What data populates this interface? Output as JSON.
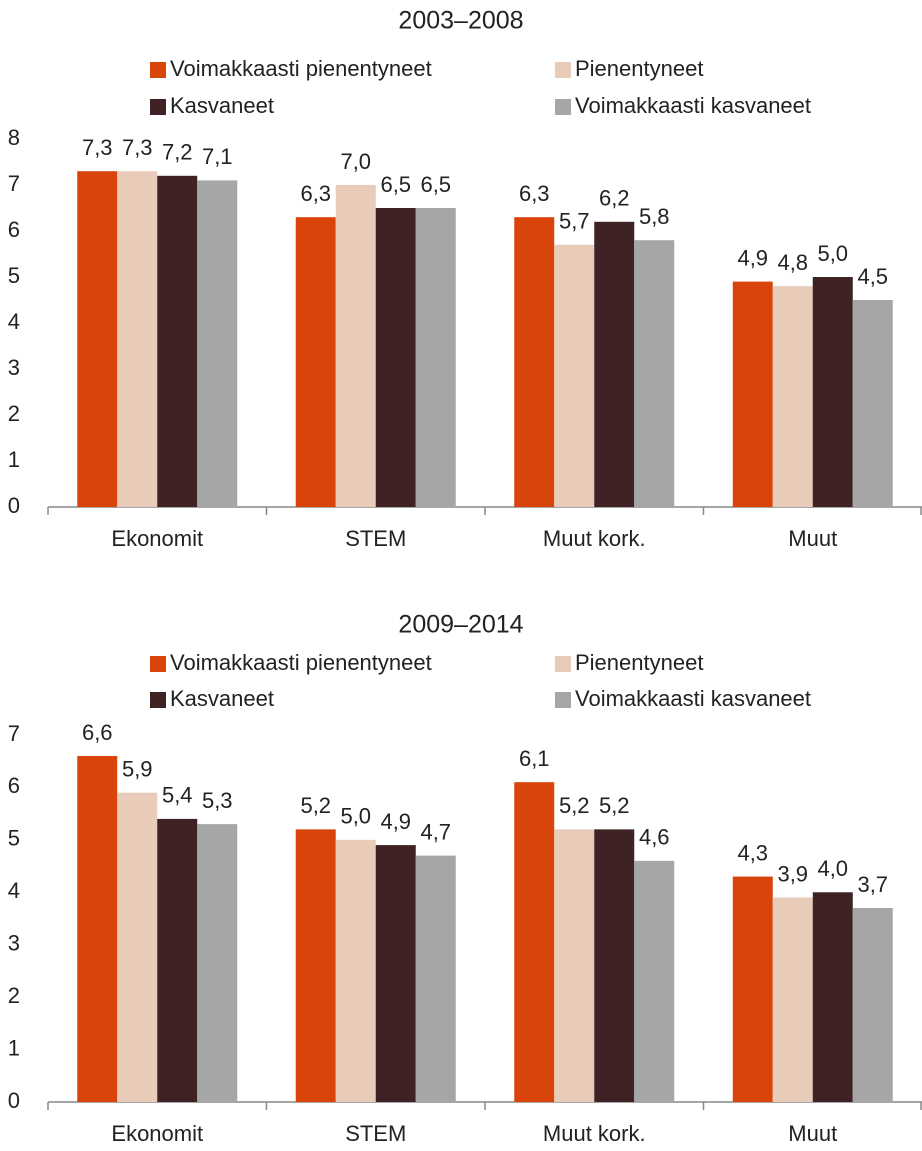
{
  "chart_data": [
    {
      "type": "bar",
      "title": "2003–2008",
      "categories": [
        "Ekonomit",
        "STEM",
        "Muut kork.",
        "Muut"
      ],
      "series": [
        {
          "name": "Voimakkaasti pienentyneet",
          "color": "#d9440a",
          "values": [
            7.3,
            6.3,
            6.3,
            4.9
          ],
          "value_labels": [
            "7,3",
            "6,3",
            "6,3",
            "4,9"
          ]
        },
        {
          "name": "Pienentyneet",
          "color": "#e8cbb8",
          "values": [
            7.3,
            7.0,
            5.7,
            4.8
          ],
          "value_labels": [
            "7,3",
            "7,0",
            "5,7",
            "4,8"
          ]
        },
        {
          "name": "Kasvaneet",
          "color": "#3e2224",
          "values": [
            7.2,
            6.5,
            6.2,
            5.0
          ],
          "value_labels": [
            "7,2",
            "6,5",
            "6,2",
            "5,0"
          ]
        },
        {
          "name": "Voimakkaasti kasvaneet",
          "color": "#a6a6a6",
          "values": [
            7.1,
            6.5,
            5.8,
            4.5
          ],
          "value_labels": [
            "7,1",
            "6,5",
            "5,8",
            "4,5"
          ]
        }
      ],
      "ylim": [
        0,
        8
      ],
      "yticks": [
        0,
        1,
        2,
        3,
        4,
        5,
        6,
        7,
        8
      ],
      "grid": false,
      "legend": "top"
    },
    {
      "type": "bar",
      "title": "2009–2014",
      "categories": [
        "Ekonomit",
        "STEM",
        "Muut kork.",
        "Muut"
      ],
      "series": [
        {
          "name": "Voimakkaasti pienentyneet",
          "color": "#d9440a",
          "values": [
            6.6,
            5.2,
            6.1,
            4.3
          ],
          "value_labels": [
            "6,6",
            "5,2",
            "6,1",
            "4,3"
          ]
        },
        {
          "name": "Pienentyneet",
          "color": "#e8cbb8",
          "values": [
            5.9,
            5.0,
            5.2,
            3.9
          ],
          "value_labels": [
            "5,9",
            "5,0",
            "5,2",
            "3,9"
          ]
        },
        {
          "name": "Kasvaneet",
          "color": "#3e2224",
          "values": [
            5.4,
            4.9,
            5.2,
            4.0
          ],
          "value_labels": [
            "5,4",
            "4,9",
            "5,2",
            "4,0"
          ]
        },
        {
          "name": "Voimakkaasti kasvaneet",
          "color": "#a6a6a6",
          "values": [
            5.3,
            4.7,
            4.6,
            3.7
          ],
          "value_labels": [
            "5,3",
            "4,7",
            "4,6",
            "3,7"
          ]
        }
      ],
      "ylim": [
        0,
        7
      ],
      "yticks": [
        0,
        1,
        2,
        3,
        4,
        5,
        6,
        7
      ],
      "grid": false,
      "legend": "top"
    }
  ]
}
